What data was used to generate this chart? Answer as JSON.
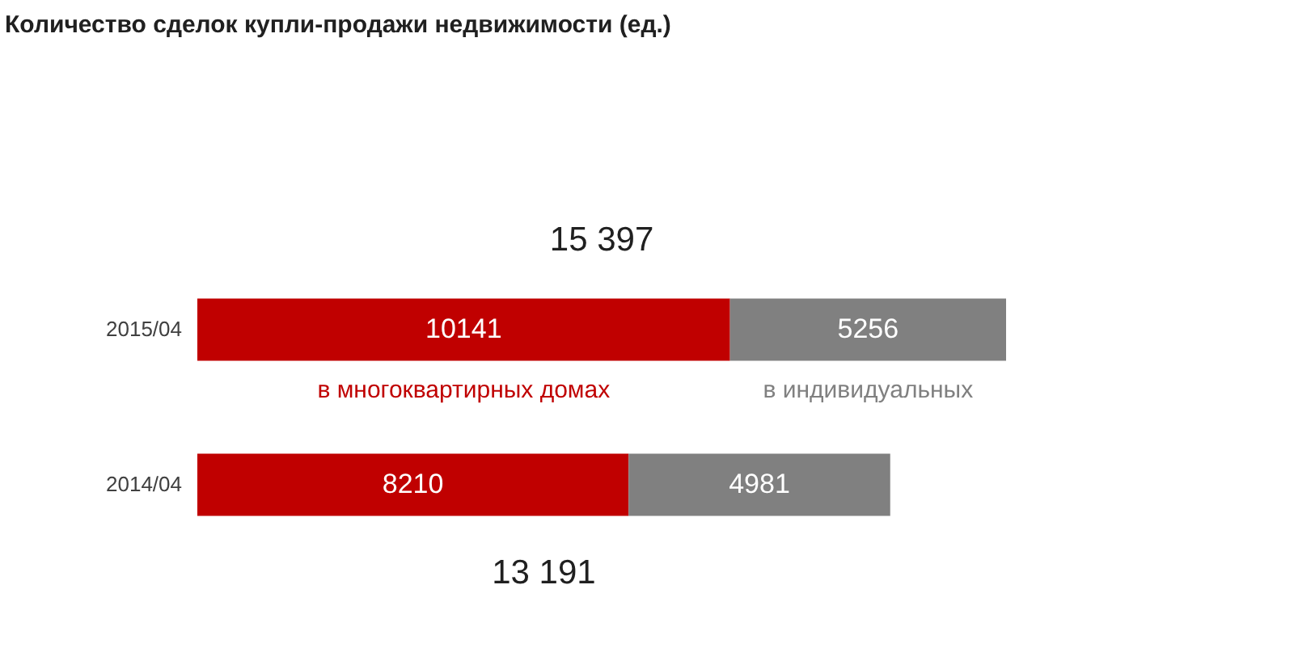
{
  "chart_data": {
    "type": "bar",
    "orientation": "horizontal",
    "stacked": true,
    "title": "Количество  сделок купли-продажи недвижимости  (ед.)",
    "categories": [
      "2015/04",
      "2014/04"
    ],
    "series": [
      {
        "name": "в многоквартирных домах",
        "color": "#c00000",
        "values": [
          10141,
          8210
        ]
      },
      {
        "name": "в индивидуальных",
        "color": "#808080",
        "values": [
          5256,
          4981
        ]
      }
    ],
    "totals": [
      "15 397",
      "13 191"
    ],
    "data_labels": true,
    "legend": false,
    "grid": false
  }
}
